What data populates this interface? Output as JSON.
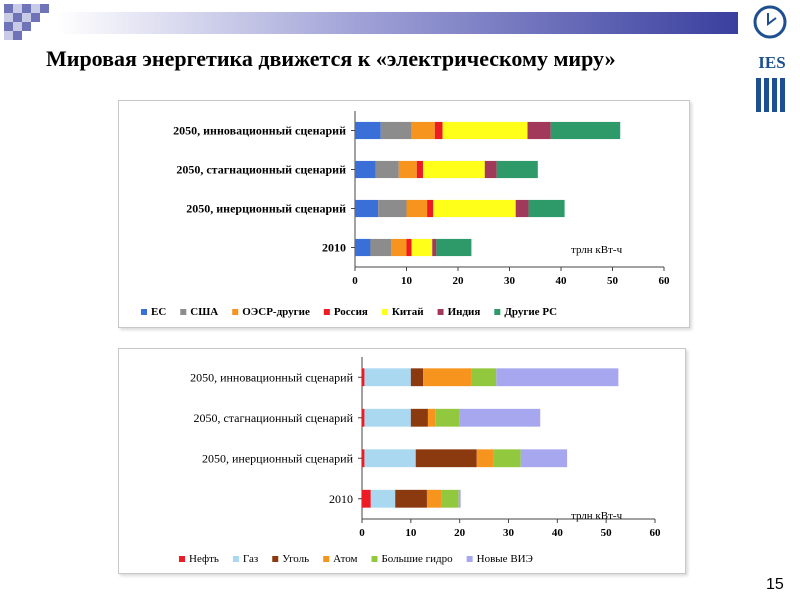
{
  "slide": {
    "title": "Мировая энергетика движется к «электрическому миру»",
    "page_number": "15",
    "logo_text": "IES"
  },
  "chart_data": [
    {
      "type": "bar",
      "orientation": "horizontal",
      "stacked": true,
      "categories": [
        "2050, инновационный сценарий",
        "2050, стагнационный сценарий",
        "2050, инерционный сценарий",
        "2010"
      ],
      "series": [
        {
          "name": "ЕС",
          "color": "#3a6fd8",
          "values": [
            5,
            4,
            4.5,
            3
          ]
        },
        {
          "name": "США",
          "color": "#8c8c8c",
          "values": [
            6,
            4.5,
            5.5,
            4
          ]
        },
        {
          "name": "ОЭСР-другие",
          "color": "#f7941d",
          "values": [
            4.5,
            3.5,
            4,
            3
          ]
        },
        {
          "name": "Россия",
          "color": "#ed1c24",
          "values": [
            1.5,
            1.2,
            1.2,
            1
          ]
        },
        {
          "name": "Китай",
          "color": "#ffff1a",
          "values": [
            16.5,
            12,
            16,
            4
          ]
        },
        {
          "name": "Индия",
          "color": "#a2385a",
          "values": [
            4.5,
            2.3,
            2.5,
            0.8
          ]
        },
        {
          "name": "Другие РС",
          "color": "#2e9a6a",
          "values": [
            13.5,
            8,
            7,
            6.8
          ]
        }
      ],
      "xlim": [
        0,
        60
      ],
      "xticks": [
        "0",
        "10",
        "20",
        "30",
        "40",
        "50",
        "60"
      ],
      "unit_label": "трлн кВт-ч",
      "legend_position": "bottom"
    },
    {
      "type": "bar",
      "orientation": "horizontal",
      "stacked": true,
      "categories": [
        "2050, инновационный сценарий",
        "2050, стагнационный сценарий",
        "2050, инерционный сценарий",
        "2010"
      ],
      "series": [
        {
          "name": "Нефть",
          "color": "#ed1c24",
          "values": [
            0.5,
            0.5,
            0.5,
            1.8
          ]
        },
        {
          "name": "Газ",
          "color": "#a9d8f0",
          "values": [
            9.5,
            9.5,
            10.5,
            5
          ]
        },
        {
          "name": "Уголь",
          "color": "#8b3a0f",
          "values": [
            2.5,
            3.5,
            12.5,
            6.5
          ]
        },
        {
          "name": "Атом",
          "color": "#f7941d",
          "values": [
            10,
            1.5,
            3.5,
            3
          ]
        },
        {
          "name": "Большие гидро",
          "color": "#92c83e",
          "values": [
            5,
            5,
            5.5,
            3.5
          ]
        },
        {
          "name": "Новые ВИЭ",
          "color": "#a7a7ef",
          "values": [
            25,
            16.5,
            9.5,
            0.4
          ]
        }
      ],
      "xlim": [
        0,
        60
      ],
      "xticks": [
        "0",
        "10",
        "20",
        "30",
        "40",
        "50",
        "60"
      ],
      "unit_label": "трлн кВт-ч",
      "legend_position": "bottom"
    }
  ]
}
